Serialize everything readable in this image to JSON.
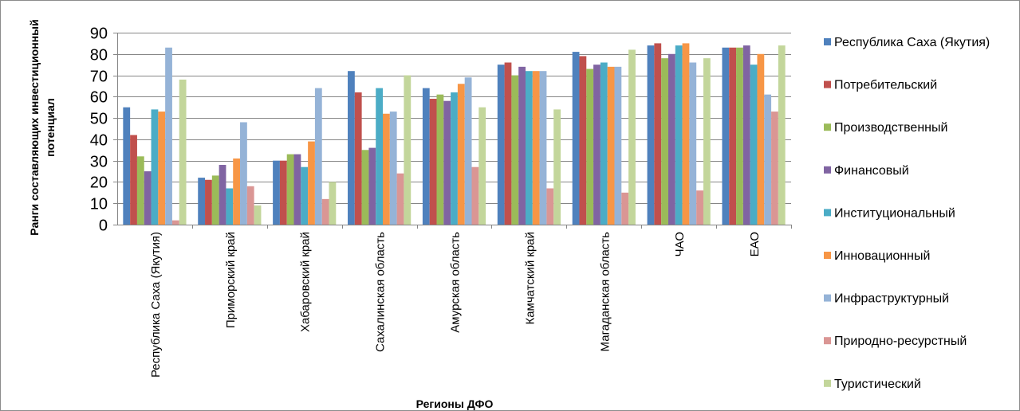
{
  "chart_data": {
    "type": "bar",
    "xlabel": "Регионы ДФО",
    "ylabel": [
      "Ранги составляющих инвестиционный",
      "потенциал"
    ],
    "ylim": [
      0,
      90
    ],
    "yticks": [
      0,
      10,
      20,
      30,
      40,
      50,
      60,
      70,
      80,
      90
    ],
    "grid": "horizontal",
    "legend_position": "right",
    "categories": [
      "Республика Саха (Якутия)",
      "Приморский край",
      "Хабаровский край",
      "Сахалинская область",
      "Амурская область",
      "Камчатский край",
      "Магаданская область",
      "ЧАО",
      "ЕАО"
    ],
    "series": [
      {
        "name": "Республика Саха (Якутия)",
        "color": "#4F81BD",
        "values": [
          55,
          22,
          30,
          72,
          64,
          75,
          81,
          84,
          83
        ]
      },
      {
        "name": "Потребительский",
        "color": "#C0504D",
        "values": [
          42,
          21,
          30,
          62,
          59,
          76,
          79,
          85,
          83
        ]
      },
      {
        "name": "Производственный",
        "color": "#9BBB59",
        "values": [
          32,
          23,
          33,
          35,
          61,
          70,
          73,
          78,
          83
        ]
      },
      {
        "name": "Финансовый",
        "color": "#8064A2",
        "values": [
          25,
          28,
          33,
          36,
          58,
          74,
          75,
          80,
          84
        ]
      },
      {
        "name": "Институциональный",
        "color": "#4BACC6",
        "values": [
          54,
          17,
          27,
          64,
          62,
          72,
          76,
          84,
          75
        ]
      },
      {
        "name": "Инновационный",
        "color": "#F79646",
        "values": [
          53,
          31,
          39,
          52,
          66,
          72,
          74,
          85,
          80
        ]
      },
      {
        "name": "Инфраструктурный",
        "color": "#95B3D7",
        "values": [
          83,
          48,
          64,
          53,
          69,
          72,
          74,
          76,
          61
        ]
      },
      {
        "name": "Природно-ресурстный",
        "color": "#DA9694",
        "values": [
          2,
          18,
          12,
          24,
          27,
          17,
          15,
          16,
          53
        ]
      },
      {
        "name": "Туристический",
        "color": "#C3D69B",
        "values": [
          68,
          9,
          20,
          70,
          55,
          54,
          82,
          78,
          84
        ]
      }
    ]
  }
}
